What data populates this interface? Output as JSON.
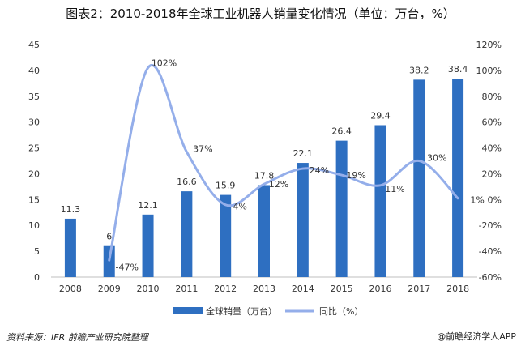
{
  "title": "图表2：2010-2018年全球工业机器人销量变化情况（单位：万台，%）",
  "source": "资料来源：IFR 前瞻产业研究院整理",
  "brand": "@前瞻经济学人APP",
  "chart_data": {
    "type": "bar",
    "categories": [
      "2008",
      "2009",
      "2010",
      "2011",
      "2012",
      "2013",
      "2014",
      "2015",
      "2016",
      "2017",
      "2018"
    ],
    "series": [
      {
        "name": "全球销量（万台）",
        "type": "bar",
        "axis": "left",
        "values": [
          11.3,
          6,
          12.1,
          16.6,
          15.9,
          17.8,
          22.1,
          26.4,
          29.4,
          38.2,
          38.4
        ],
        "labels": [
          "11.3",
          "6",
          "12.1",
          "16.6",
          "15.9",
          "17.8",
          "22.1",
          "26.4",
          "29.4",
          "38.2",
          "38.4"
        ]
      },
      {
        "name": "同比（%）",
        "type": "line",
        "axis": "right",
        "values": [
          null,
          -47,
          102,
          37,
          -4,
          12,
          24,
          19,
          11,
          30,
          1
        ],
        "labels": [
          "",
          "-47%",
          "102%",
          "37%",
          "-4%",
          "12%",
          "24%",
          "19%",
          "11%",
          "30%",
          "1%"
        ]
      }
    ],
    "left_axis": {
      "ylim": [
        0,
        45
      ],
      "ticks": [
        "0",
        "5",
        "10",
        "15",
        "20",
        "25",
        "30",
        "35",
        "40",
        "45"
      ]
    },
    "right_axis": {
      "ylim": [
        -60,
        120
      ],
      "ticks": [
        "-60%",
        "-40%",
        "-20%",
        "0%",
        "20%",
        "40%",
        "60%",
        "80%",
        "100%",
        "120%"
      ]
    },
    "legend_position": "bottom",
    "colors": {
      "bar": "#2e6fc1",
      "line": "#94aeea"
    }
  }
}
